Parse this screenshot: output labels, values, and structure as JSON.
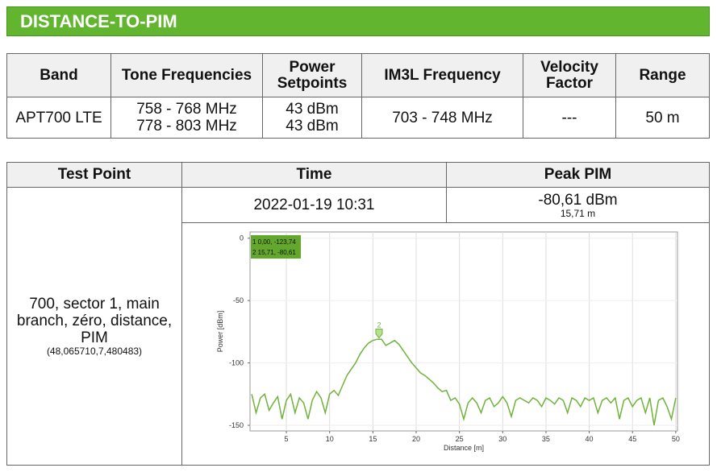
{
  "header": {
    "title": "DISTANCE-TO-PIM"
  },
  "band_table": {
    "headers": [
      "Band",
      "Tone Frequencies",
      "Power Setpoints",
      "IM3L Frequency",
      "Velocity Factor",
      "Range"
    ],
    "row": {
      "band": "APT700 LTE",
      "tones": [
        "758 - 768 MHz",
        "778 - 803 MHz"
      ],
      "power": [
        "43 dBm",
        "43 dBm"
      ],
      "im3l": "703 - 748 MHz",
      "velocity": "---",
      "range": "50 m"
    }
  },
  "test_table": {
    "headers": [
      "Test Point",
      "Time",
      "Peak PIM"
    ],
    "test_point": "700, sector 1, main branch, zéro, distance, PIM",
    "coordinates": "(48,065710,7,480483)",
    "time": "2022-01-19 10:31",
    "peak_pim": "-80,61 dBm",
    "peak_distance": "15,71 m"
  },
  "chart": {
    "type": "line",
    "x_label": "Distance [m]",
    "y_label": "Power [dBm]",
    "marker_table": [
      "1 0,00, -123,74",
      "2 15,71, -80,61"
    ],
    "markers": [
      {
        "label": "2",
        "x": 15.71,
        "y": -80.61
      }
    ],
    "xlim": [
      0.8,
      50.2
    ],
    "ylim": [
      -154.5,
      5
    ],
    "xticks": [
      5,
      10,
      15,
      20,
      25,
      30,
      35,
      40,
      45,
      50
    ],
    "yticks": [
      0,
      -50,
      -100,
      -150
    ],
    "grid": true,
    "x": [
      1,
      1.5,
      2,
      2.5,
      3,
      3.5,
      4,
      4.5,
      5,
      5.5,
      6,
      6.5,
      7,
      7.5,
      8,
      8.5,
      9,
      9.5,
      10,
      10.5,
      11,
      11.5,
      12,
      12.5,
      13,
      13.5,
      14,
      14.5,
      15,
      15.5,
      16,
      16.5,
      17,
      17.5,
      18,
      18.5,
      19,
      19.5,
      20,
      20.5,
      21,
      21.5,
      22,
      22.5,
      23,
      23.5,
      24,
      24.5,
      25,
      25.5,
      26,
      26.5,
      27,
      27.5,
      28,
      28.5,
      29,
      29.5,
      30,
      30.5,
      31,
      31.5,
      32,
      32.5,
      33,
      33.5,
      34,
      34.5,
      35,
      35.5,
      36,
      36.5,
      37,
      37.5,
      38,
      38.5,
      39,
      39.5,
      40,
      40.5,
      41,
      41.5,
      42,
      42.5,
      43,
      43.5,
      44,
      44.5,
      45,
      45.5,
      46,
      46.5,
      47,
      47.5,
      48,
      48.5,
      49,
      49.5,
      50
    ],
    "series": [
      {
        "color": "#6fb33a",
        "values": [
          -125,
          -140,
          -128,
          -125,
          -138,
          -132,
          -127,
          -145,
          -130,
          -125,
          -140,
          -128,
          -132,
          -145,
          -130,
          -123,
          -128,
          -140,
          -125,
          -122,
          -126,
          -118,
          -110,
          -105,
          -100,
          -93,
          -88,
          -84,
          -82,
          -81,
          -81,
          -86,
          -84,
          -82,
          -85,
          -90,
          -95,
          -100,
          -104,
          -108,
          -110,
          -113,
          -116,
          -120,
          -123,
          -122,
          -130,
          -128,
          -133,
          -145,
          -132,
          -128,
          -132,
          -140,
          -130,
          -128,
          -135,
          -132,
          -127,
          -132,
          -143,
          -130,
          -128,
          -130,
          -132,
          -128,
          -130,
          -135,
          -128,
          -130,
          -133,
          -128,
          -130,
          -140,
          -128,
          -130,
          -135,
          -128,
          -130,
          -128,
          -140,
          -130,
          -128,
          -132,
          -128,
          -145,
          -130,
          -128,
          -135,
          -130,
          -128,
          -140,
          -128,
          -150,
          -130,
          -128,
          -135,
          -145,
          -128
        ]
      }
    ]
  }
}
